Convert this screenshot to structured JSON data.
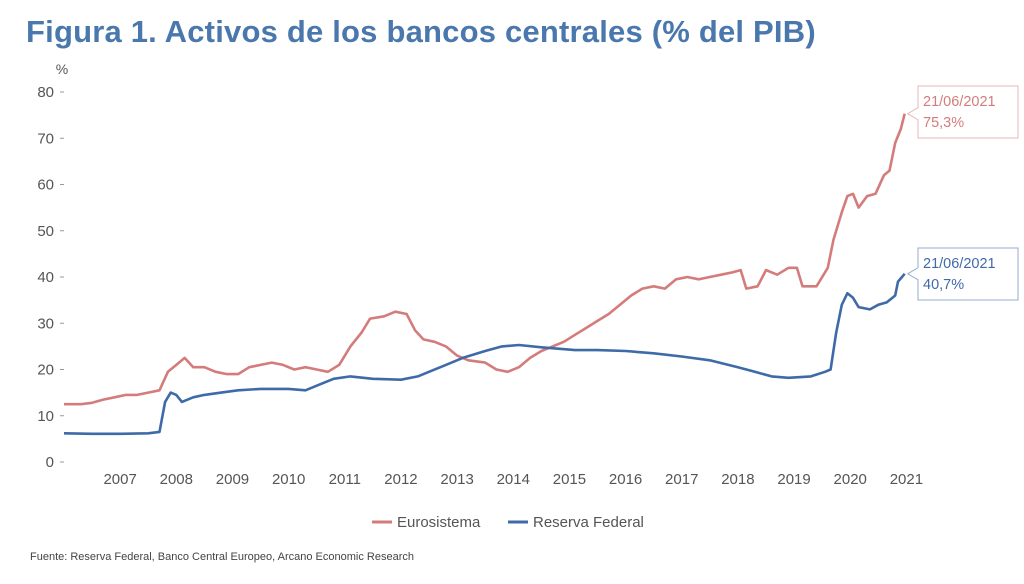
{
  "title": "Figura 1. Activos de los bancos centrales (% del PIB)",
  "source": "Fuente: Reserva Federal, Banco Central Europeo, Arcano Economic Research",
  "colors": {
    "eurosistema": "#d47c7c",
    "reserva_federal": "#3f6aa8",
    "title": "#4a78ad",
    "axis_text": "#555555"
  },
  "chart_data": {
    "type": "line",
    "title": "Figura 1. Activos de los bancos centrales (% del PIB)",
    "ylabel": "%",
    "xlabel": "",
    "ylim": [
      0,
      80
    ],
    "xlim": [
      2006.5,
      2021.6
    ],
    "yticks": [
      0,
      10,
      20,
      30,
      40,
      50,
      60,
      70,
      80
    ],
    "xticks": [
      "2007",
      "2008",
      "2009",
      "2010",
      "2011",
      "2012",
      "2013",
      "2014",
      "2015",
      "2016",
      "2017",
      "2018",
      "2019",
      "2020",
      "2021"
    ],
    "grid": false,
    "legend": "bottom-center",
    "series": [
      {
        "name": "Eurosistema",
        "color": "#d47c7c",
        "points": [
          [
            2006.5,
            12.5
          ],
          [
            2006.8,
            12.5
          ],
          [
            2007.0,
            12.8
          ],
          [
            2007.2,
            13.5
          ],
          [
            2007.4,
            14.0
          ],
          [
            2007.6,
            14.5
          ],
          [
            2007.8,
            14.5
          ],
          [
            2008.0,
            15.0
          ],
          [
            2008.2,
            15.5
          ],
          [
            2008.35,
            19.5
          ],
          [
            2008.5,
            21.0
          ],
          [
            2008.65,
            22.5
          ],
          [
            2008.8,
            20.5
          ],
          [
            2009.0,
            20.5
          ],
          [
            2009.2,
            19.5
          ],
          [
            2009.4,
            19.0
          ],
          [
            2009.6,
            19.0
          ],
          [
            2009.8,
            20.5
          ],
          [
            2010.0,
            21.0
          ],
          [
            2010.2,
            21.5
          ],
          [
            2010.4,
            21.0
          ],
          [
            2010.6,
            20.0
          ],
          [
            2010.8,
            20.5
          ],
          [
            2011.0,
            20.0
          ],
          [
            2011.2,
            19.5
          ],
          [
            2011.4,
            21.0
          ],
          [
            2011.6,
            25.0
          ],
          [
            2011.8,
            28.0
          ],
          [
            2011.95,
            31.0
          ],
          [
            2012.2,
            31.5
          ],
          [
            2012.4,
            32.5
          ],
          [
            2012.6,
            32.0
          ],
          [
            2012.75,
            28.5
          ],
          [
            2012.9,
            26.5
          ],
          [
            2013.1,
            26.0
          ],
          [
            2013.3,
            25.0
          ],
          [
            2013.5,
            23.0
          ],
          [
            2013.7,
            22.0
          ],
          [
            2014.0,
            21.5
          ],
          [
            2014.2,
            20.0
          ],
          [
            2014.4,
            19.5
          ],
          [
            2014.6,
            20.5
          ],
          [
            2014.8,
            22.5
          ],
          [
            2015.0,
            24.0
          ],
          [
            2015.2,
            25.0
          ],
          [
            2015.4,
            26.0
          ],
          [
            2015.6,
            27.5
          ],
          [
            2015.8,
            29.0
          ],
          [
            2016.0,
            30.5
          ],
          [
            2016.2,
            32.0
          ],
          [
            2016.4,
            34.0
          ],
          [
            2016.6,
            36.0
          ],
          [
            2016.8,
            37.5
          ],
          [
            2017.0,
            38.0
          ],
          [
            2017.2,
            37.5
          ],
          [
            2017.4,
            39.5
          ],
          [
            2017.6,
            40.0
          ],
          [
            2017.8,
            39.5
          ],
          [
            2018.0,
            40.0
          ],
          [
            2018.2,
            40.5
          ],
          [
            2018.4,
            41.0
          ],
          [
            2018.55,
            41.5
          ],
          [
            2018.65,
            37.5
          ],
          [
            2018.85,
            38.0
          ],
          [
            2019.0,
            41.5
          ],
          [
            2019.2,
            40.5
          ],
          [
            2019.4,
            42.0
          ],
          [
            2019.55,
            42.0
          ],
          [
            2019.65,
            38.0
          ],
          [
            2019.9,
            38.0
          ],
          [
            2020.1,
            42.0
          ],
          [
            2020.2,
            48.0
          ],
          [
            2020.35,
            54.0
          ],
          [
            2020.45,
            57.5
          ],
          [
            2020.55,
            58.0
          ],
          [
            2020.65,
            55.0
          ],
          [
            2020.8,
            57.5
          ],
          [
            2020.95,
            58.0
          ],
          [
            2021.1,
            62.0
          ],
          [
            2021.2,
            63.0
          ],
          [
            2021.3,
            69.0
          ],
          [
            2021.4,
            72.0
          ],
          [
            2021.47,
            75.3
          ]
        ]
      },
      {
        "name": "Reserva Federal",
        "color": "#3f6aa8",
        "points": [
          [
            2006.5,
            6.2
          ],
          [
            2007.0,
            6.1
          ],
          [
            2007.5,
            6.1
          ],
          [
            2008.0,
            6.2
          ],
          [
            2008.2,
            6.5
          ],
          [
            2008.3,
            13.0
          ],
          [
            2008.4,
            15.0
          ],
          [
            2008.5,
            14.5
          ],
          [
            2008.6,
            13.0
          ],
          [
            2008.8,
            14.0
          ],
          [
            2009.0,
            14.5
          ],
          [
            2009.3,
            15.0
          ],
          [
            2009.6,
            15.5
          ],
          [
            2010.0,
            15.8
          ],
          [
            2010.5,
            15.8
          ],
          [
            2010.8,
            15.5
          ],
          [
            2011.0,
            16.5
          ],
          [
            2011.3,
            18.0
          ],
          [
            2011.6,
            18.5
          ],
          [
            2012.0,
            18.0
          ],
          [
            2012.5,
            17.8
          ],
          [
            2012.8,
            18.5
          ],
          [
            2013.0,
            19.5
          ],
          [
            2013.3,
            21.0
          ],
          [
            2013.6,
            22.5
          ],
          [
            2014.0,
            24.0
          ],
          [
            2014.3,
            25.0
          ],
          [
            2014.6,
            25.3
          ],
          [
            2015.0,
            24.8
          ],
          [
            2015.3,
            24.5
          ],
          [
            2015.6,
            24.2
          ],
          [
            2016.0,
            24.2
          ],
          [
            2016.5,
            24.0
          ],
          [
            2017.0,
            23.5
          ],
          [
            2017.5,
            22.8
          ],
          [
            2018.0,
            22.0
          ],
          [
            2018.5,
            20.5
          ],
          [
            2018.8,
            19.5
          ],
          [
            2019.1,
            18.5
          ],
          [
            2019.4,
            18.2
          ],
          [
            2019.8,
            18.5
          ],
          [
            2020.05,
            19.5
          ],
          [
            2020.15,
            20.0
          ],
          [
            2020.25,
            28.0
          ],
          [
            2020.35,
            34.0
          ],
          [
            2020.45,
            36.5
          ],
          [
            2020.55,
            35.5
          ],
          [
            2020.65,
            33.5
          ],
          [
            2020.85,
            33.0
          ],
          [
            2021.0,
            34.0
          ],
          [
            2021.15,
            34.5
          ],
          [
            2021.3,
            36.0
          ],
          [
            2021.35,
            39.0
          ],
          [
            2021.47,
            40.7
          ]
        ]
      }
    ],
    "annotations": [
      {
        "series": "Eurosistema",
        "date": "21/06/2021",
        "value_label": "75,3%",
        "value": 75.3
      },
      {
        "series": "Reserva Federal",
        "date": "21/06/2021",
        "value_label": "40,7%",
        "value": 40.7
      }
    ]
  }
}
